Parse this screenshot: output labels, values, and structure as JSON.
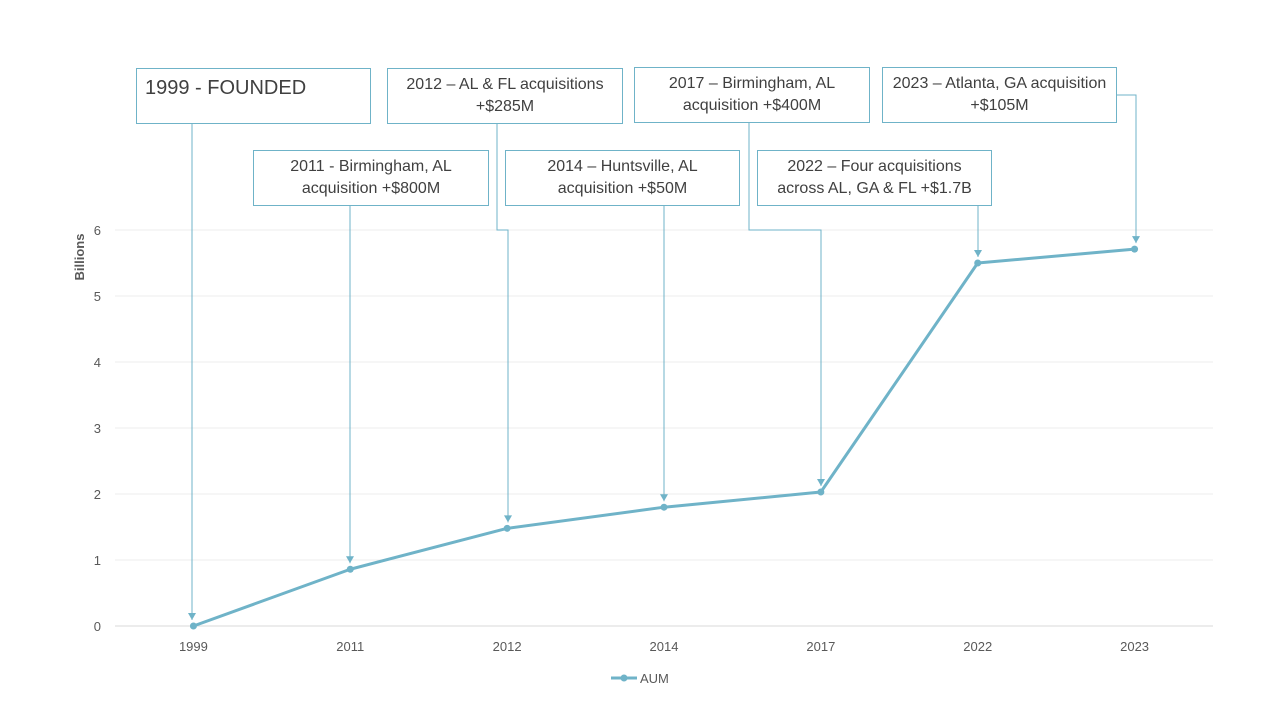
{
  "chart_data": {
    "type": "line",
    "title": "",
    "xlabel": "",
    "ylabel": "Billions",
    "categories": [
      "1999",
      "2011",
      "2012",
      "2014",
      "2017",
      "2022",
      "2023"
    ],
    "series": [
      {
        "name": "AUM",
        "values": [
          0.0,
          0.86,
          1.48,
          1.8,
          2.03,
          5.5,
          5.71
        ]
      }
    ],
    "ylim": [
      0,
      6
    ],
    "yticks": [
      "0",
      "1",
      "2",
      "3",
      "4",
      "5",
      "6"
    ],
    "grid": true,
    "legend": "bottom",
    "line_color": "#6fb3c8",
    "annotations": [
      {
        "category": "1999",
        "text": "1999 - FOUNDED"
      },
      {
        "category": "2011",
        "text": "2011 - Birmingham, AL acquisition +$800M"
      },
      {
        "category": "2012",
        "text": "2012 – AL & FL acquisitions +$285M"
      },
      {
        "category": "2014",
        "text": "2014 – Huntsville, AL acquisition +$50M"
      },
      {
        "category": "2017",
        "text": "2017 – Birmingham, AL acquisition +$400M"
      },
      {
        "category": "2022",
        "text": "2022 – Four acquisitions across AL, GA & FL +$1.7B"
      },
      {
        "category": "2023",
        "text": "2023 – Atlanta, GA acquisition +$105M"
      }
    ]
  }
}
